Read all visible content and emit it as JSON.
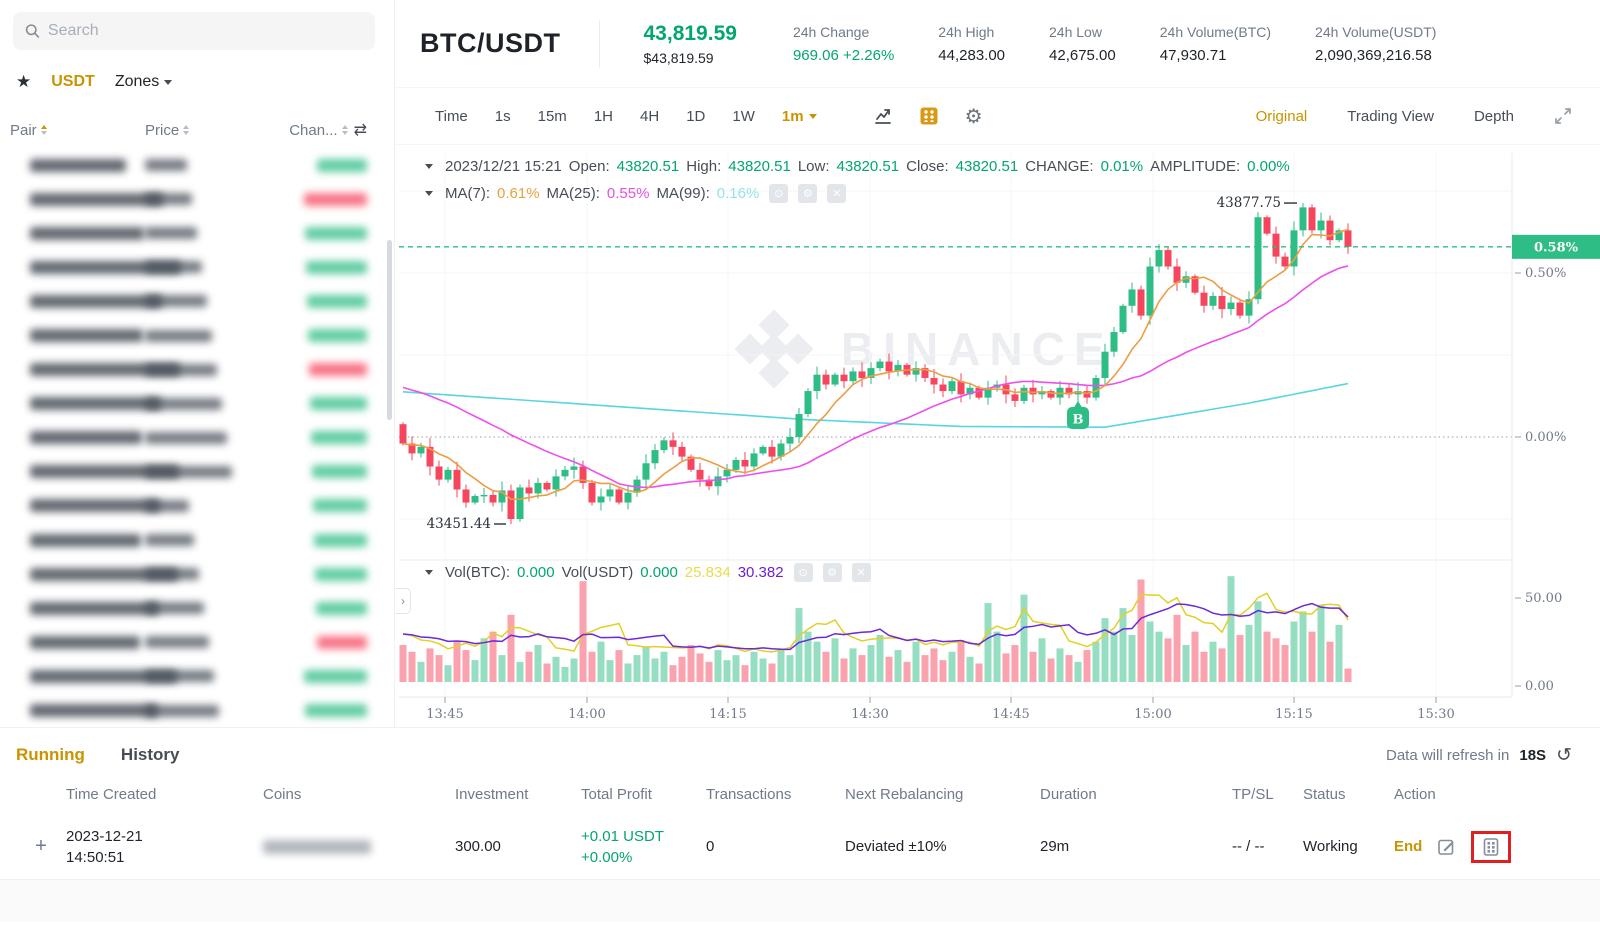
{
  "colors": {
    "accent": "#C99400",
    "green": "#03A66D",
    "candle_up": "#2EBD85",
    "candle_down": "#F6465D",
    "annotation_red": "#E02020"
  },
  "sidebar": {
    "search_placeholder": "Search",
    "favorites_icon": "star",
    "quote_tab": "USDT",
    "zones_tab": "Zones",
    "columns": {
      "pair": "Pair",
      "price": "Price",
      "change": "Chan..."
    },
    "rows_blurred": true,
    "rows": [
      {
        "dir": "up"
      },
      {
        "dir": "down"
      },
      {
        "dir": "up"
      },
      {
        "dir": "up"
      },
      {
        "dir": "up"
      },
      {
        "dir": "up"
      },
      {
        "dir": "down"
      },
      {
        "dir": "up"
      },
      {
        "dir": "up"
      },
      {
        "dir": "up"
      },
      {
        "dir": "up"
      },
      {
        "dir": "up"
      },
      {
        "dir": "up"
      },
      {
        "dir": "up"
      },
      {
        "dir": "down"
      },
      {
        "dir": "up"
      },
      {
        "dir": "up"
      }
    ]
  },
  "header": {
    "symbol": "BTC/USDT",
    "last_price": "43,819.59",
    "fiat_price": "$43,819.59",
    "stats": [
      {
        "label": "24h Change",
        "value": "969.06 +2.26%",
        "positive": true
      },
      {
        "label": "24h High",
        "value": "44,283.00",
        "positive": false
      },
      {
        "label": "24h Low",
        "value": "42,675.00",
        "positive": false
      },
      {
        "label": "24h Volume(BTC)",
        "value": "47,930.71",
        "positive": false
      },
      {
        "label": "24h Volume(USDT)",
        "value": "2,090,369,216.58",
        "positive": false
      }
    ]
  },
  "toolbar": {
    "intervals": [
      "Time",
      "1s",
      "15m",
      "1H",
      "4H",
      "1D",
      "1W"
    ],
    "selected_interval": "1m",
    "views": [
      "Original",
      "Trading View",
      "Depth"
    ],
    "active_view": "Original"
  },
  "chart": {
    "ohlc_line": {
      "datetime": "2023/12/21 15:21",
      "open_label": "Open:",
      "open": "43820.51",
      "high_label": "High:",
      "high": "43820.51",
      "low_label": "Low:",
      "low": "43820.51",
      "close_label": "Close:",
      "close": "43820.51",
      "change_label": "CHANGE:",
      "change": "0.01%",
      "amplitude_label": "AMPLITUDE:",
      "amplitude": "0.00%"
    },
    "ma_line": {
      "ma7_label": "MA(7):",
      "ma7": "0.61%",
      "ma25_label": "MA(25):",
      "ma25": "0.55%",
      "ma99_label": "MA(99):",
      "ma99": "0.16%"
    },
    "vol_line": {
      "volbtc_label": "Vol(BTC):",
      "volbtc": "0.000",
      "volusdt_label": "Vol(USDT)",
      "volusdt": "0.000",
      "ma1": "25.834",
      "ma2": "30.382"
    },
    "watermark": "BINANCE",
    "low_annotation": "43451.44",
    "high_annotation": "43877.75",
    "price_axis": {
      "current": "0.58%",
      "ticks": [
        "0.50%",
        "0.00%"
      ]
    },
    "volume_axis": [
      "50.00",
      "0.00"
    ],
    "time_ticks": [
      "13:45",
      "14:00",
      "14:15",
      "14:30",
      "14:45",
      "15:00",
      "15:15",
      "15:30"
    ]
  },
  "chart_data": {
    "type": "candlestick",
    "symbol": "BTC/USDT",
    "interval": "1m",
    "title": "BTC/USDT 1m kline with MA(7), MA(25), MA(99) and volume",
    "x_time_ticks": [
      "13:45",
      "14:00",
      "14:15",
      "14:30",
      "14:45",
      "15:00",
      "15:15",
      "15:30"
    ],
    "right_axis_pct_ticks": [
      0.5,
      0.0
    ],
    "current_change_pct": 0.58,
    "base_price": 43567.0,
    "open_first": 43584.0,
    "low_marked": 43451.44,
    "high_marked": 43877.75,
    "low_marked_index": 12,
    "high_marked_index": 100,
    "last_close": 43819.59,
    "ma25_seed": 43636,
    "ma7_values_pct": {
      "ma7": 0.61,
      "ma25": 0.55,
      "ma99": 0.16
    },
    "closes": [
      43558.3,
      43545.2,
      43553.9,
      43527.8,
      43510.4,
      43523.4,
      43497.3,
      43479.9,
      43488.6,
      43490.0,
      43480.0,
      43496.0,
      43458.1,
      43500.0,
      43492.0,
      43506.0,
      43497.3,
      43514.7,
      43523.4,
      43527.8,
      43506.0,
      43480.0,
      43488.0,
      43497.3,
      43480.0,
      43493.0,
      43510.4,
      43532.1,
      43549.6,
      43562.6,
      43553.9,
      43540.9,
      43523.4,
      43510.4,
      43501.6,
      43514.7,
      43523.4,
      43536.5,
      43527.8,
      43545.2,
      43553.9,
      43540.9,
      43558.3,
      43567.0,
      43597.5,
      43628.0,
      43649.8,
      43636.7,
      43649.8,
      43641.1,
      43654.1,
      43645.4,
      43658.5,
      43667.2,
      43654.1,
      43662.8,
      43649.8,
      43658.5,
      43645.4,
      43636.7,
      43628.0,
      43641.1,
      43623.6,
      43632.4,
      43619.3,
      43632.4,
      43636.7,
      43623.6,
      43614.9,
      43632.4,
      43623.6,
      43628.0,
      43619.3,
      43632.4,
      43623.6,
      43628.0,
      43619.3,
      43645.4,
      43680.3,
      43706.4,
      43741.3,
      43763.0,
      43728.2,
      43793.5,
      43815.3,
      43793.5,
      43771.8,
      43780.5,
      43758.7,
      43741.3,
      43754.3,
      43736.9,
      43745.6,
      43728.2,
      43750.0,
      43858.9,
      43837.1,
      43806.6,
      43793.5,
      43841.5,
      43872.0,
      43841.5,
      43854.5,
      43828.4,
      43841.5,
      43819.59
    ],
    "volumes": [
      22,
      18,
      12,
      20,
      16,
      10,
      24,
      19,
      13,
      26,
      30,
      16,
      40,
      12,
      18,
      22,
      11,
      15,
      9,
      14,
      60,
      18,
      24,
      13,
      19,
      11,
      16,
      21,
      14,
      18,
      10,
      15,
      22,
      17,
      12,
      19,
      13,
      16,
      10,
      18,
      14,
      11,
      20,
      16,
      44,
      30,
      24,
      18,
      26,
      14,
      20,
      16,
      22,
      28,
      15,
      19,
      12,
      24,
      16,
      20,
      13,
      18,
      25,
      15,
      11,
      47,
      30,
      17,
      22,
      52,
      18,
      26,
      14,
      20,
      16,
      12,
      19,
      24,
      38,
      30,
      44,
      28,
      61,
      36,
      30,
      26,
      40,
      22,
      30,
      18,
      24,
      20,
      63,
      28,
      34,
      48,
      30,
      26,
      22,
      36,
      42,
      30,
      46,
      24,
      34,
      8
    ],
    "volume_axis_ticks": [
      50.0,
      0.0
    ],
    "ma99_keypoints": [
      [
        0,
        43627
      ],
      [
        45,
        43590
      ],
      [
        62,
        43581
      ],
      [
        78,
        43580
      ],
      [
        94,
        43612
      ],
      [
        105,
        43638
      ]
    ],
    "event_marker": {
      "index": 75,
      "label": "B"
    }
  },
  "bottom": {
    "tabs": [
      "Running",
      "History"
    ],
    "active_tab": "Running",
    "refresh_text": "Data will refresh in",
    "refresh_seconds": "18S",
    "table": {
      "columns": [
        "Time Created",
        "Coins",
        "Investment",
        "Total Profit",
        "Transactions",
        "Next Rebalancing",
        "Duration",
        "TP/SL",
        "Status",
        "Action"
      ],
      "row": {
        "expander": "+",
        "date": "2023-12-21",
        "time": "14:50:51",
        "coins_blurred": true,
        "investment": "300.00",
        "profit_line1": "+0.01 USDT",
        "profit_line2": "+0.00%",
        "transactions": "0",
        "next_rebalancing": "Deviated ±10%",
        "duration": "29m",
        "tp_sl": "-- / --",
        "status": "Working",
        "action_end": "End"
      }
    }
  }
}
